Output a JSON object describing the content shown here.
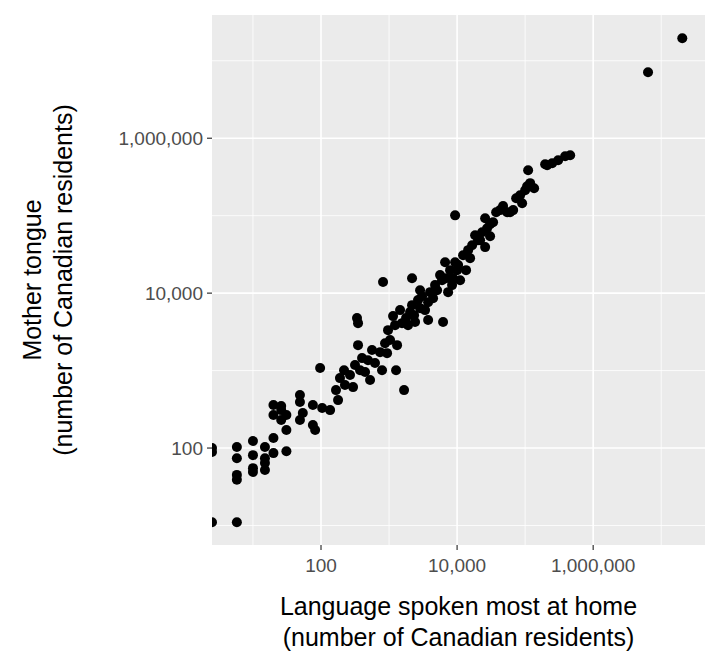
{
  "chart_data": {
    "type": "scatter",
    "x_label": "Language spoken most at home\n(number of Canadian residents)",
    "y_label": "Mother tongue\n(number of Canadian residents)",
    "log": true,
    "grid": true,
    "color": "#000000",
    "xlim": [
      2.5,
      44000000
    ],
    "ylim": [
      5.6,
      39000000
    ],
    "xticks": [
      100,
      {
        "value": 10000,
        "label": "10,000"
      },
      {
        "value": 1000000,
        "label": "1,000,000"
      }
    ],
    "yticks": [
      100,
      {
        "value": 10000,
        "label": "10,000"
      },
      {
        "value": 1000000,
        "label": "1,000,000"
      }
    ],
    "x": [
      2.5,
      2.5,
      2.5,
      5.8,
      5.8,
      5.8,
      5.8,
      5.8,
      10,
      10,
      10,
      10,
      15,
      15,
      15,
      15,
      20,
      20,
      20,
      20,
      26,
      26,
      26,
      31,
      31,
      31,
      49,
      49,
      49,
      54,
      76,
      76,
      82,
      97,
      104,
      136,
      166,
      178,
      190,
      218,
      225,
      267,
      296,
      316,
      338,
      350,
      350,
      375,
      401,
      444,
      491,
      526,
      562,
      622,
      738,
      789,
      816,
      873,
      935,
      966,
      1035,
      1146,
      1225,
      1312,
      1452,
      1552,
      1663,
      1778,
      1901,
      2037,
      2178,
      2333,
      2410,
      2667,
      2858,
      3055,
      3381,
      3750,
      4009,
      4436,
      4742,
      5082,
      5623,
      6012,
      6223,
      6887,
      7379,
      7889,
      8433,
      9354,
      10000,
      10350,
      11070,
      12250,
      13550,
      14520,
      15520,
      16630,
      18400,
      20370,
      21780,
      23330,
      25820,
      27610,
      30550,
      33810,
      37500,
      42850,
      47420,
      54330,
      60120,
      66680,
      73790,
      84330,
      90360,
      100000,
      106900,
      118600,
      135500,
      110700,
      196800,
      210900,
      249500,
      305500,
      387300,
      459200,
      9354,
      25820,
      30550,
      2858,
      1268,
      2178,
      3750,
      6668,
      8730,
      6400000,
      20400000
    ],
    "values": [
      100,
      89,
      11,
      103,
      74,
      45,
      39,
      11,
      123,
      81,
      55,
      49,
      103,
      74,
      64,
      52,
      359,
      267,
      135,
      86,
      348,
      309,
      230,
      267,
      171,
      91,
      483,
      393,
      230,
      283,
      359,
      198,
      171,
      1080,
      328,
      309,
      560,
      416,
      800,
      1010,
      650,
      875,
      612,
      1180,
      4760,
      4100,
      2130,
      1010,
      1450,
      957,
      1360,
      754,
      1840,
      1250,
      1730,
      1010,
      13900,
      2260,
      1680,
      3330,
      2480,
      5050,
      3860,
      2130,
      6040,
      4100,
      560,
      4760,
      3860,
      5690,
      7000,
      5200,
      4230,
      8130,
      6400,
      9140,
      6040,
      7650,
      10300,
      8610,
      12700,
      10900,
      17100,
      14700,
      4230,
      15600,
      10300,
      19800,
      12700,
      25100,
      19800,
      23000,
      14700,
      30900,
      19800,
      35900,
      28300,
      41600,
      56000,
      48300,
      48300,
      61200,
      92900,
      69000,
      77600,
      82400,
      111000,
      118000,
      133000,
      111000,
      111000,
      118000,
      168000,
      184000,
      145000,
      213000,
      240000,
      263000,
      226000,
      387000,
      462000,
      449000,
      476000,
      520000,
      586000,
      604000,
      101000,
      39300,
      54300,
      10900,
      1010,
      15600,
      4490,
      25100,
      15600,
      7100000,
      19500000
    ]
  }
}
